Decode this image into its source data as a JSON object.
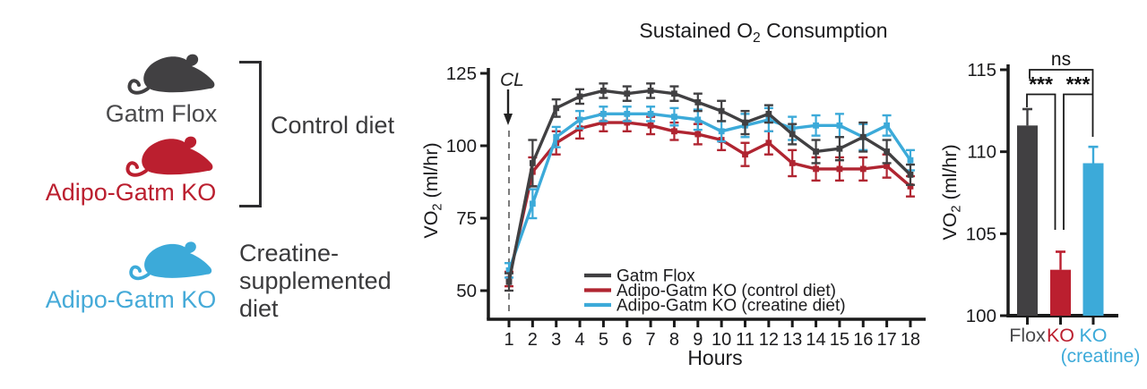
{
  "colors": {
    "dark": "#414042",
    "red": "#bb1f2f",
    "blue": "#3caad9",
    "axis": "#1a1a1a",
    "text": "#3a3a3c"
  },
  "left_panel": {
    "rows": [
      {
        "label": "Gatm Flox",
        "color": "#4a4a4c"
      },
      {
        "label": "Adipo-Gatm KO",
        "color": "#bb1f2f"
      },
      {
        "label": "Adipo-Gatm KO",
        "color": "#45aad8"
      }
    ],
    "bracket_label": "Control diet",
    "creatine_lines": [
      "Creatine-",
      "supplemented",
      "diet"
    ]
  },
  "chart_data": [
    {
      "type": "line",
      "title": {
        "prefix": "Sustained O",
        "sub": "2",
        "suffix": " Consumption"
      },
      "ylabel": {
        "prefix": "VO",
        "sub": "2",
        "suffix": " (ml/hr)"
      },
      "xlabel": "Hours",
      "annotation": {
        "text": "CL",
        "at_x": 1
      },
      "x": [
        1,
        2,
        3,
        4,
        5,
        6,
        7,
        8,
        9,
        10,
        11,
        12,
        13,
        14,
        15,
        16,
        17,
        18
      ],
      "yticks": [
        50,
        75,
        100,
        125
      ],
      "ylim": [
        45,
        127
      ],
      "grid": false,
      "legend_position": "inside-bottom-right",
      "series": [
        {
          "name": "Gatm Flox",
          "color": "#414042",
          "values": [
            53,
            94,
            113,
            117,
            119,
            118,
            119,
            118,
            115,
            112,
            108,
            111,
            104,
            98,
            99,
            103,
            98,
            90
          ],
          "errors": [
            3,
            8,
            3,
            2.5,
            2.5,
            2.5,
            2.5,
            2.5,
            3,
            3.5,
            4,
            3,
            3.5,
            4,
            4,
            5,
            4,
            3.5
          ]
        },
        {
          "name": "Adipo-Gatm KO (control diet)",
          "color": "#b02531",
          "values": [
            54,
            91,
            101,
            106,
            108,
            108,
            107,
            105,
            104,
            102,
            97,
            101,
            94,
            92,
            92,
            92,
            93,
            86
          ],
          "errors": [
            2.5,
            5,
            4,
            3.5,
            3,
            3,
            3,
            3,
            3.5,
            3.5,
            4,
            4,
            4.5,
            4,
            4,
            4,
            4,
            3.5
          ]
        },
        {
          "name": "Adipo-Gatm KO (creatine diet)",
          "color": "#3caad9",
          "values": [
            57,
            80,
            103,
            109,
            111,
            111,
            111,
            110,
            109,
            105,
            107,
            109,
            106,
            107,
            107,
            103,
            107,
            95
          ],
          "errors": [
            2.5,
            5,
            3.5,
            3,
            2.5,
            2.5,
            2.5,
            3,
            3.5,
            3.5,
            4,
            4,
            4,
            3.5,
            4,
            4.5,
            3.5,
            3.5
          ]
        }
      ]
    },
    {
      "type": "bar",
      "ylabel": {
        "prefix": "VO",
        "sub": "2",
        "suffix": " (ml/hr)"
      },
      "categories": [
        {
          "label": "Flox",
          "color": "#4a4a4c"
        },
        {
          "label": "KO",
          "color": "#bb1f2f"
        },
        {
          "label": "KO",
          "color": "#3caad9"
        }
      ],
      "sub_category_label": "(creatine)",
      "values": [
        111.6,
        102.8,
        109.3
      ],
      "errors": [
        1.0,
        1.1,
        1.0
      ],
      "bar_colors": [
        "#414042",
        "#bb1f2f",
        "#3caad9"
      ],
      "yticks": [
        100,
        105,
        110,
        115
      ],
      "ylim": [
        100,
        115
      ],
      "significance": [
        {
          "between": [
            "Flox",
            "KO"
          ],
          "label": "***"
        },
        {
          "between": [
            "KO",
            "KO (creatine)"
          ],
          "label": "***"
        },
        {
          "between": [
            "Flox",
            "KO (creatine)"
          ],
          "label": "ns"
        }
      ]
    }
  ]
}
